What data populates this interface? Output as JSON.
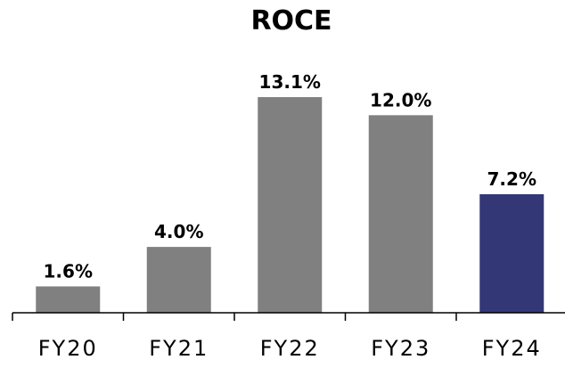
{
  "chart_data": {
    "type": "bar",
    "title": "ROCE",
    "xlabel": "",
    "ylabel": "",
    "categories": [
      "FY20",
      "FY21",
      "FY22",
      "FY23",
      "FY24"
    ],
    "values": [
      1.6,
      4.0,
      13.1,
      12.0,
      7.2
    ],
    "value_labels": [
      "1.6%",
      "4.0%",
      "13.1%",
      "12.0%",
      "7.2%"
    ],
    "ylim": [
      0,
      14.5
    ],
    "grid": false,
    "legend": "none",
    "colors": {
      "default_bar": "#808080",
      "highlight_bar": "#333775",
      "highlight_category": "FY24"
    }
  }
}
